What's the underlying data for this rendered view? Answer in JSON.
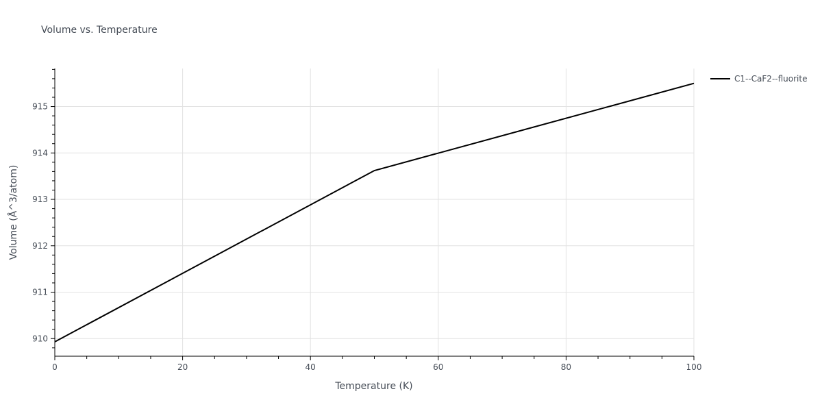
{
  "chart_data": {
    "type": "line",
    "title": "Volume vs. Temperature",
    "xlabel": "Temperature (K)",
    "ylabel": "Volume (Å^3/atom)",
    "xlim": [
      0,
      100
    ],
    "ylim": [
      909.62,
      915.82
    ],
    "x_ticks": [
      0,
      20,
      40,
      60,
      80,
      100
    ],
    "y_ticks": [
      910,
      911,
      912,
      913,
      914,
      915
    ],
    "grid": true,
    "legend_position": "top-right",
    "series": [
      {
        "name": "C1--CaF2--fluorite",
        "color": "#000000",
        "x": [
          0,
          50,
          100
        ],
        "y": [
          909.93,
          913.62,
          915.5
        ]
      }
    ]
  }
}
